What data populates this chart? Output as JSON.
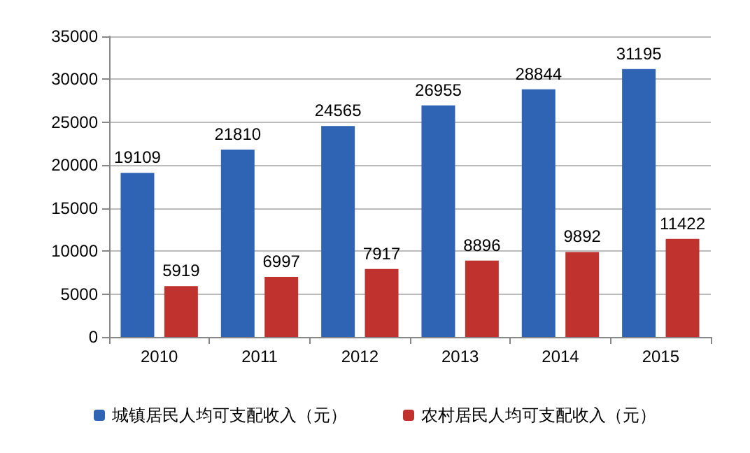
{
  "chart_data": {
    "type": "bar",
    "categories": [
      "2010",
      "2011",
      "2012",
      "2013",
      "2014",
      "2015"
    ],
    "series": [
      {
        "name": "城镇居民人均可支配收入（元）",
        "color": "#2f63b4",
        "values": [
          19109,
          21810,
          24565,
          26955,
          28844,
          31195
        ]
      },
      {
        "name": "农村居民人均可支配收入（元）",
        "color": "#c0322e",
        "values": [
          5919,
          6997,
          7917,
          8896,
          9892,
          11422
        ]
      }
    ],
    "ylim": [
      0,
      35000
    ],
    "yticks": [
      0,
      5000,
      10000,
      15000,
      20000,
      25000,
      30000,
      35000
    ],
    "grid": "y",
    "legend": "bottom",
    "data_labels": true
  }
}
